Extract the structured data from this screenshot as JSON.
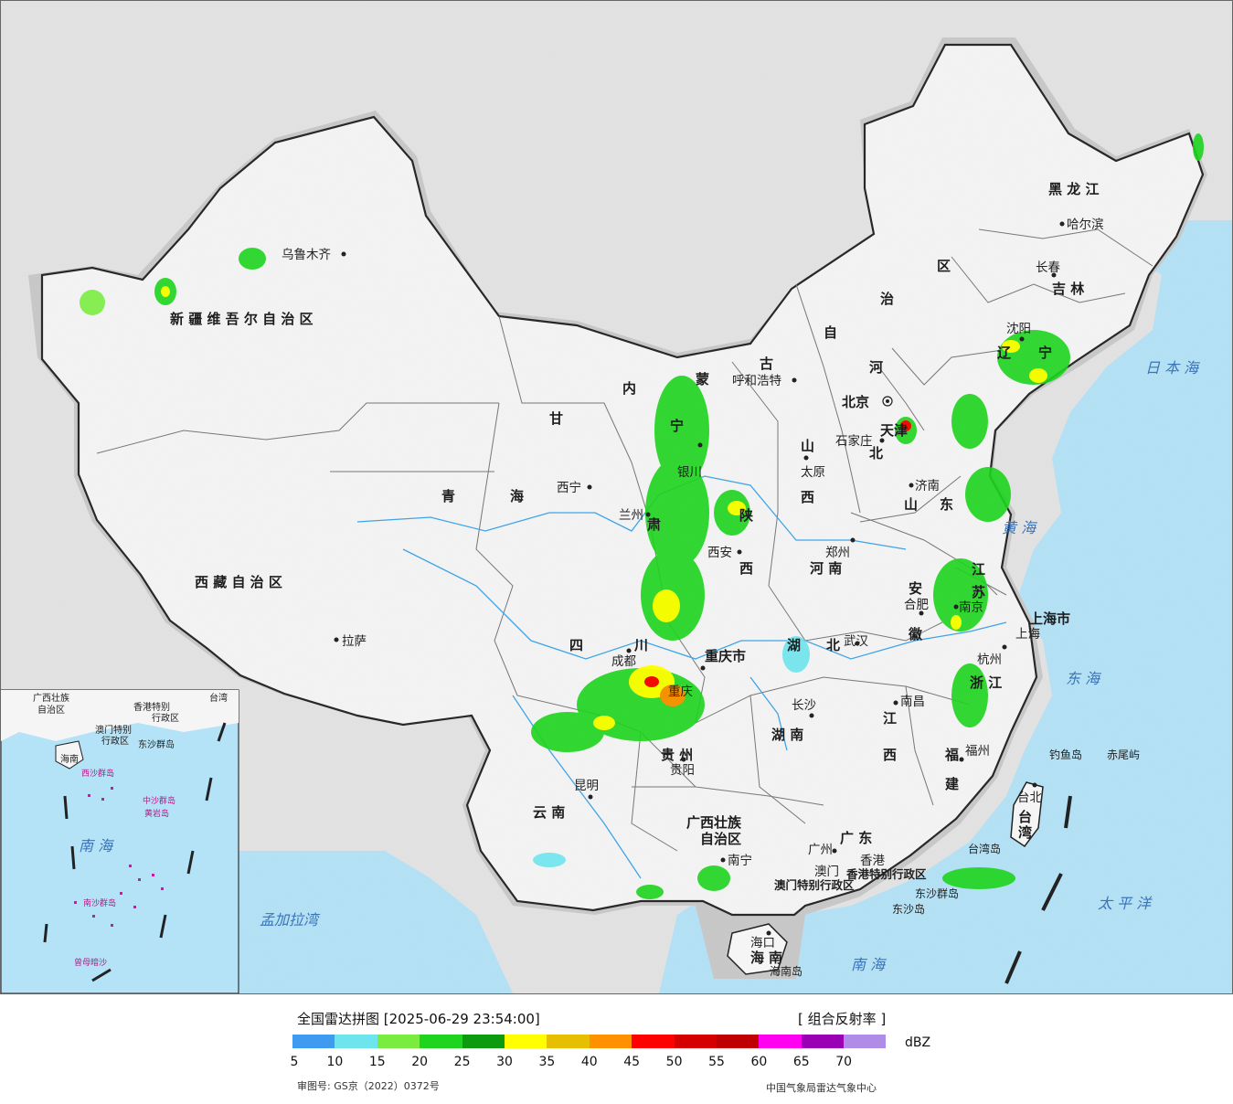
{
  "map": {
    "regions": {
      "xinjiang": "新 疆 维 吾 尔 自 治 区",
      "xizang": "西 藏 自 治 区",
      "qinghai_a": "青",
      "qinghai_b": "海",
      "gansu": "甘",
      "neimeng_a": "内",
      "neimeng_b": "蒙",
      "neimeng_c": "古",
      "neimeng_d": "自",
      "neimeng_e": "治",
      "neimeng_f": "区",
      "heilongjiang": "黑   龙   江",
      "jilin": "吉   林",
      "liaoning_a": "辽",
      "liaoning_b": "宁",
      "hebei_a": "河",
      "hebei_b": "北",
      "shanxi_a": "山",
      "shanxi_b": "西",
      "shaanxi_a": "陕",
      "shaanxi_b": "西",
      "ningxia": "宁",
      "henan": "河   南",
      "shandong_a": "山",
      "shandong_b": "东",
      "sichuan_a": "四",
      "sichuan_b": "川",
      "chongqing": "重庆市",
      "hubei": "北",
      "hubei_lake": "湖",
      "hunan": "湖   南",
      "anhui_a": "安",
      "anhui_b": "徽",
      "jiangsu_a": "江",
      "jiangsu_b": "苏",
      "zhejiang": "浙 江",
      "jiangxi_a": "江",
      "jiangxi_b": "西",
      "fujian_a": "福",
      "fujian_b": "建",
      "guizhou": "贵   州",
      "yunnan": "云   南",
      "guangxi_a": "广西壮族",
      "guangxi_b": "自治区",
      "guangdong": "广   东",
      "hainan_a": "海",
      "hainan_b": "南",
      "taiwan_a": "台",
      "taiwan_b": "湾",
      "shanghai": "上海市",
      "beijing": "北京",
      "tianjin": "天津",
      "gansu_b": "肃",
      "xianggang": "香港特别行政区",
      "aomen": "澳门特别行政区"
    },
    "cities": {
      "urumqi": "乌鲁木齐",
      "lhasa": "拉萨",
      "xining": "西宁",
      "lanzhou": "兰州",
      "yinchuan": "银川",
      "huhehaote": "呼和浩特",
      "taiyuan": "太原",
      "shijiazhuang": "石家庄",
      "jinan": "济南",
      "zhengzhou": "郑州",
      "xian": "西安",
      "chengdu": "成都",
      "chongqing": "重庆",
      "wuhan": "武汉",
      "hefei": "合肥",
      "nanjing": "南京",
      "hangzhou": "杭州",
      "changsha": "长沙",
      "nanchang": "南昌",
      "fuzhou": "福州",
      "taibei": "台北",
      "guiyang": "贵阳",
      "kunming": "昆明",
      "nanning": "南宁",
      "guangzhou": "广州",
      "aomen": "澳门",
      "xianggang": "香港",
      "haikou": "海口",
      "haerbin": "哈尔滨",
      "changchun": "长春",
      "shenyang": "沈阳",
      "shanghai": "上海"
    },
    "seas": {
      "japan_sea": "日 本 海",
      "huang_hai": "黄   海",
      "dong_hai": "东   海",
      "taiping_yang": "太   平   洋",
      "nan_hai": "南     海",
      "mengjiala": "孟加拉湾"
    },
    "islands": {
      "diaoyu": "钓鱼岛",
      "chiwei": "赤尾屿",
      "taiwan_dao": "台湾岛",
      "hainan_dao": "海南岛",
      "dongsha": "东沙群岛",
      "dongsha_b": "东沙岛"
    },
    "inset": {
      "guangxi": "广西壮族",
      "guangxi_b": "自治区",
      "xianggang": "香港特别",
      "xianggang_b": "行政区",
      "aomen": "澳门特别",
      "aomen_b": "行政区",
      "taiwan": "台湾",
      "dongsha": "东沙群岛",
      "hainan": "海南",
      "xisha": "西沙群岛",
      "zhongsha": "中沙群岛",
      "huangyan": "黄岩岛",
      "nanhai": "南     海",
      "nansha": "南沙群岛",
      "zengmu": "曾母暗沙"
    }
  },
  "legend": {
    "title": "全国雷达拼图 [2025-06-29 23:54:00]",
    "product": "[ 组合反射率 ]",
    "unit": "dBZ",
    "ticks": [
      "5",
      "10",
      "15",
      "20",
      "25",
      "30",
      "35",
      "40",
      "45",
      "50",
      "55",
      "60",
      "65",
      "70"
    ],
    "colors": [
      "#3e9bf0",
      "#6ee4ec",
      "#7aec40",
      "#1ed41e",
      "#0e9a0e",
      "#ffff00",
      "#e6c000",
      "#ff9000",
      "#ff0000",
      "#d40000",
      "#c00000",
      "#ff00f0",
      "#9a00b4",
      "#ae8ce8"
    ],
    "approval": "审图号: GS京（2022）0372号",
    "source": "中国气象局雷达气象中心"
  }
}
